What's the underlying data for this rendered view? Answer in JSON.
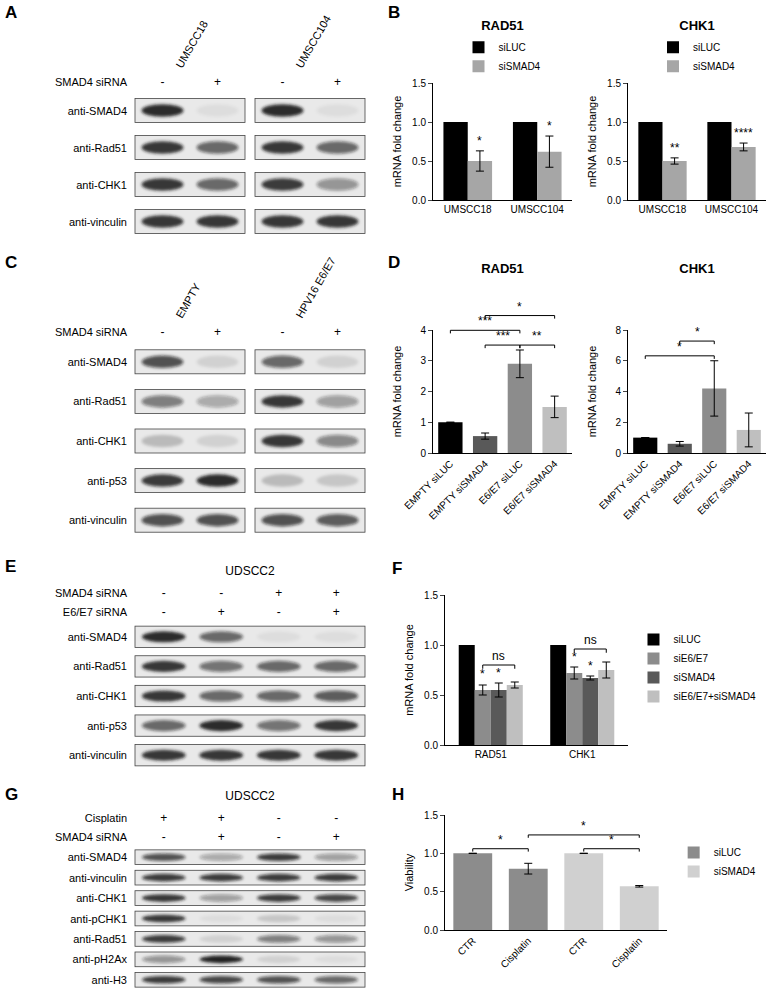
{
  "panel_labels": [
    "A",
    "B",
    "C",
    "D",
    "E",
    "F",
    "G",
    "H"
  ],
  "blots": [
    {
      "groups": [
        "UMSCC18",
        "UMSCC104"
      ],
      "conditions": [
        {
          "label": "SMAD4 siRNA",
          "signs": [
            "-",
            "+",
            "-",
            "+"
          ]
        }
      ],
      "rows": [
        {
          "label": "anti-SMAD4",
          "signal": [
            0.9,
            0.05,
            0.9,
            0.05
          ]
        },
        {
          "label": "anti-Rad51",
          "signal": [
            0.85,
            0.6,
            0.85,
            0.6
          ]
        },
        {
          "label": "anti-CHK1",
          "signal": [
            0.85,
            0.6,
            0.8,
            0.4
          ]
        },
        {
          "label": "anti-vinculin",
          "signal": [
            0.85,
            0.85,
            0.85,
            0.85
          ]
        }
      ]
    },
    {
      "groups": [
        "EMPTY",
        "HPV16 E6/E7"
      ],
      "conditions": [
        {
          "label": "SMAD4 siRNA",
          "signs": [
            "-",
            "+",
            "-",
            "+"
          ]
        }
      ],
      "rows": [
        {
          "label": "anti-SMAD4",
          "signal": [
            0.7,
            0.1,
            0.6,
            0.1
          ]
        },
        {
          "label": "anti-Rad51",
          "signal": [
            0.5,
            0.3,
            0.85,
            0.35
          ]
        },
        {
          "label": "anti-CHK1",
          "signal": [
            0.2,
            0.1,
            0.85,
            0.45
          ]
        },
        {
          "label": "anti-p53",
          "signal": [
            0.8,
            0.9,
            0.2,
            0.15
          ]
        },
        {
          "label": "anti-vinculin",
          "signal": [
            0.7,
            0.7,
            0.7,
            0.65
          ]
        }
      ]
    },
    {
      "title": "UDSCC2",
      "conditions": [
        {
          "label": "SMAD4 siRNA",
          "signs": [
            "-",
            "-",
            "+",
            "+"
          ]
        },
        {
          "label": "E6/E7 siRNA",
          "signs": [
            "-",
            "+",
            "-",
            "+"
          ]
        }
      ],
      "rows": [
        {
          "label": "anti-SMAD4",
          "signal": [
            0.9,
            0.6,
            0.05,
            0.05
          ]
        },
        {
          "label": "anti-Rad51",
          "signal": [
            0.85,
            0.55,
            0.6,
            0.6
          ]
        },
        {
          "label": "anti-CHK1",
          "signal": [
            0.85,
            0.6,
            0.6,
            0.65
          ]
        },
        {
          "label": "anti-p53",
          "signal": [
            0.6,
            0.9,
            0.55,
            0.85
          ]
        },
        {
          "label": "anti-vinculin",
          "signal": [
            0.85,
            0.85,
            0.85,
            0.85
          ]
        }
      ]
    },
    {
      "title": "UDSCC2",
      "conditions": [
        {
          "label": "Cisplatin",
          "signs": [
            "+",
            "+",
            "-",
            "-"
          ]
        },
        {
          "label": "SMAD4 siRNA",
          "signs": [
            "-",
            "+",
            "-",
            "+"
          ]
        }
      ],
      "rows": [
        {
          "label": "anti-SMAD4",
          "signal": [
            0.7,
            0.3,
            0.8,
            0.35
          ]
        },
        {
          "label": "anti-vinculin",
          "signal": [
            0.8,
            0.8,
            0.8,
            0.8
          ]
        },
        {
          "label": "anti-CHK1",
          "signal": [
            0.85,
            0.35,
            0.8,
            0.75
          ]
        },
        {
          "label": "anti-pCHK1",
          "signal": [
            0.85,
            0.05,
            0.15,
            0.05
          ]
        },
        {
          "label": "anti-Rad51",
          "signal": [
            0.8,
            0.1,
            0.5,
            0.4
          ]
        },
        {
          "label": "anti-pH2Ax",
          "signal": [
            0.4,
            0.95,
            0.1,
            0.05
          ]
        },
        {
          "label": "anti-H3",
          "signal": [
            0.8,
            0.75,
            0.7,
            0.6
          ]
        }
      ]
    }
  ],
  "chart_data": [
    {
      "type": "bar",
      "title": "RAD51",
      "y_label": "mRNA fold change",
      "categories": [
        "UMSCC18",
        "UMSCC104"
      ],
      "series": [
        {
          "name": "siLUC",
          "color": "#000000",
          "values": [
            1,
            1
          ]
        },
        {
          "name": "siSMAD4",
          "color": "#a6a6a6",
          "values": [
            0.5,
            0.62
          ],
          "errors": [
            0.13,
            0.2
          ]
        }
      ],
      "ylim": [
        0,
        1.5
      ],
      "yticks": [
        {
          "value": 0,
          "label": "0.0"
        },
        0.5,
        {
          "value": 1,
          "label": "1.0"
        },
        1.5
      ],
      "legend": "top",
      "marks": [
        {
          "category": 0,
          "series": "siSMAD4",
          "text": "*"
        },
        {
          "category": 1,
          "series": "siSMAD4",
          "text": "*"
        }
      ]
    },
    {
      "type": "bar",
      "title": "CHK1",
      "y_label": "mRNA fold change",
      "categories": [
        "UMSCC18",
        "UMSCC104"
      ],
      "series": [
        {
          "name": "siLUC",
          "color": "#000000",
          "values": [
            1,
            1
          ]
        },
        {
          "name": "siSMAD4",
          "color": "#a6a6a6",
          "values": [
            0.5,
            0.68
          ],
          "errors": [
            0.04,
            0.05
          ]
        }
      ],
      "ylim": [
        0,
        1.5
      ],
      "yticks": [
        {
          "value": 0,
          "label": "0.0"
        },
        0.5,
        {
          "value": 1,
          "label": "1.0"
        },
        1.5
      ],
      "legend": "top",
      "marks": [
        {
          "category": 0,
          "series": "siSMAD4",
          "text": "**"
        },
        {
          "category": 1,
          "series": "siSMAD4",
          "text": "****"
        }
      ]
    },
    {
      "type": "bar",
      "title": "RAD51",
      "y_label": "mRNA fold change",
      "categories": [
        "EMPTY siLUC",
        "EMPTY siSMAD4",
        "E6/E7 siLUC",
        "E6/E7 siSMAD4"
      ],
      "values": [
        1,
        0.55,
        2.9,
        1.5
      ],
      "errors": [
        null,
        0.1,
        0.45,
        0.35
      ],
      "colors": [
        "#000000",
        "#595959",
        "#8c8c8c",
        "#bfbfbf"
      ],
      "ylim": [
        0,
        4
      ],
      "yticks": [
        0,
        1,
        2,
        3,
        4
      ],
      "brackets": [
        {
          "from": 2,
          "to": 3,
          "text": "**"
        },
        {
          "from": 1,
          "to": 2,
          "text": "***"
        },
        {
          "from": 0,
          "to": 2,
          "text": "***"
        },
        {
          "from": 1,
          "to": 3,
          "text": "*"
        }
      ]
    },
    {
      "type": "bar",
      "title": "CHK1",
      "y_label": "mRNA fold change",
      "categories": [
        "EMPTY siLUC",
        "EMPTY siSMAD4",
        "E6/E7 siLUC",
        "E6/E7 siSMAD4"
      ],
      "values": [
        1,
        0.6,
        4.2,
        1.5
      ],
      "errors": [
        null,
        0.15,
        1.8,
        1.1
      ],
      "colors": [
        "#000000",
        "#595959",
        "#8c8c8c",
        "#bfbfbf"
      ],
      "ylim": [
        0,
        8
      ],
      "yticks": [
        0,
        2,
        4,
        6,
        8
      ],
      "brackets": [
        {
          "from": 0,
          "to": 2,
          "text": "*"
        },
        {
          "from": 1,
          "to": 2,
          "text": "*"
        }
      ]
    },
    {
      "type": "bar",
      "y_label": "mRNA fold change",
      "categories": [
        "RAD51",
        "CHK1"
      ],
      "series": [
        {
          "name": "siLUC",
          "color": "#000000",
          "values": [
            1,
            1
          ]
        },
        {
          "name": "siE6/E7",
          "color": "#8c8c8c",
          "values": [
            0.55,
            0.72
          ],
          "errors": [
            0.05,
            0.06
          ]
        },
        {
          "name": "siSMAD4",
          "color": "#595959",
          "values": [
            0.55,
            0.67
          ],
          "errors": [
            0.07,
            0.02
          ]
        },
        {
          "name": "siE6/E7+siSMAD4",
          "color": "#bfbfbf",
          "values": [
            0.6,
            0.75
          ],
          "errors": [
            0.03,
            0.08
          ]
        }
      ],
      "ylim": [
        0,
        1.5
      ],
      "yticks": [
        {
          "value": 0,
          "label": "0.0"
        },
        0.5,
        {
          "value": 1,
          "label": "1.0"
        },
        1.5
      ],
      "legend": "right",
      "marks": [
        {
          "category": 0,
          "series": "siE6/E7",
          "text": "*"
        },
        {
          "category": 0,
          "series": "siSMAD4",
          "text": "*"
        },
        {
          "category": 1,
          "series": "siE6/E7",
          "text": "*"
        },
        {
          "category": 1,
          "series": "siSMAD4",
          "text": "*"
        }
      ],
      "brackets": [
        {
          "category": 0,
          "from": "siE6/E7",
          "to": "siE6/E7+siSMAD4",
          "text": "ns"
        },
        {
          "category": 1,
          "from": "siE6/E7",
          "to": "siE6/E7+siSMAD4",
          "text": "ns"
        }
      ]
    },
    {
      "type": "bar",
      "y_label": "Viability",
      "categories": [
        "CTR",
        "Cisplatin",
        "CTR",
        "Cisplatin"
      ],
      "series": [
        {
          "name": "siLUC",
          "color": "#8c8c8c",
          "values": [
            1,
            0.8,
            null,
            null
          ],
          "errors": [
            null,
            0.07,
            null,
            null
          ]
        },
        {
          "name": "siSMAD4",
          "color": "#d0d0d0",
          "values": [
            null,
            null,
            1,
            0.57
          ],
          "errors": [
            null,
            null,
            null,
            0.01
          ]
        }
      ],
      "ylim": [
        0,
        1.5
      ],
      "yticks": [
        {
          "value": 0,
          "label": "0.0"
        },
        0.5,
        {
          "value": 1,
          "label": "1.0"
        },
        1.5
      ],
      "legend": "right",
      "brackets": [
        {
          "from": 0,
          "to": 1,
          "text": "*"
        },
        {
          "from": 2,
          "to": 3,
          "text": "*"
        },
        {
          "from": 1,
          "to": 3,
          "text": "*"
        }
      ]
    }
  ]
}
